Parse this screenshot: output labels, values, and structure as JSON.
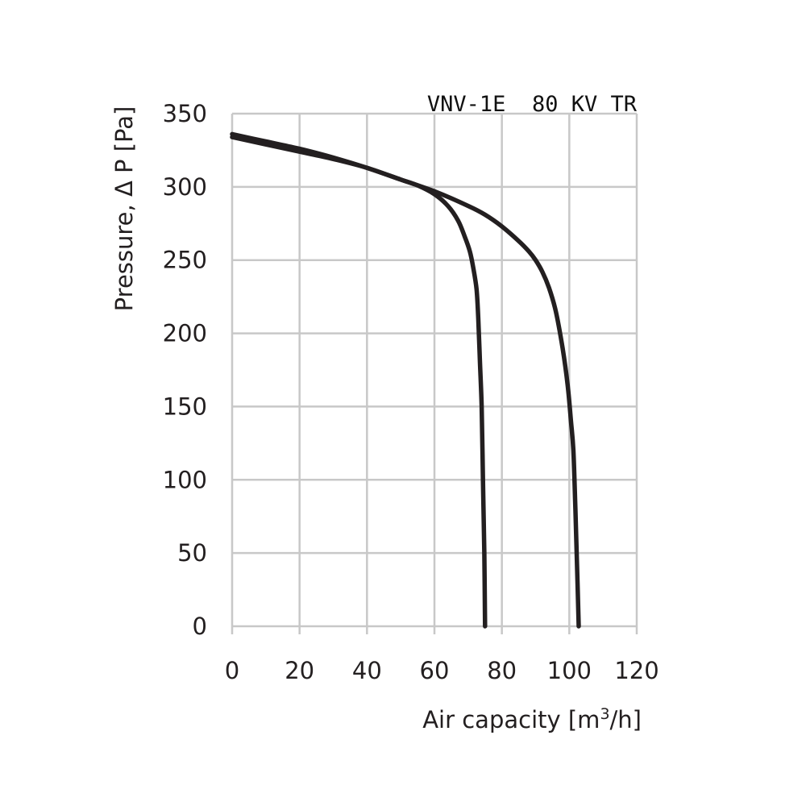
{
  "chart_data": {
    "type": "line",
    "title": "VNV-1E  80 KV TR",
    "xlabel": "Air capacity [m³/h]",
    "xlabel_parts": {
      "pre": "Air capacity [m",
      "sup": "3",
      "post": "/h]"
    },
    "ylabel": "Pressure, Δ P [Pa]",
    "xlim": [
      0,
      120
    ],
    "ylim": [
      0,
      350
    ],
    "xticks": [
      0,
      20,
      40,
      60,
      80,
      100,
      120
    ],
    "yticks": [
      0,
      50,
      100,
      150,
      200,
      250,
      300,
      350
    ],
    "grid": true,
    "line_color": "#231f20",
    "grid_color": "#c8c8c8",
    "series": [
      {
        "x": [
          0,
          10,
          20,
          30,
          40,
          50,
          55,
          60,
          64,
          67,
          69,
          70.5,
          71.5,
          72.5,
          73,
          73.5,
          74,
          74.4,
          74.8,
          75
        ],
        "y": [
          336,
          331,
          326,
          320,
          313,
          305,
          301,
          295,
          287,
          277,
          266,
          256,
          245,
          230,
          210,
          180,
          150,
          100,
          50,
          0
        ]
      },
      {
        "x": [
          0,
          10,
          20,
          30,
          40,
          50,
          60,
          70,
          75,
          80,
          85,
          88,
          90,
          92,
          94,
          96,
          98,
          99.5,
          100.5,
          101.2,
          101.8,
          102.3,
          102.8
        ],
        "y": [
          334,
          329,
          324,
          319,
          313,
          305,
          297,
          287,
          281,
          273,
          263,
          256,
          250,
          242,
          231,
          215,
          190,
          165,
          140,
          120,
          80,
          40,
          0
        ]
      }
    ]
  }
}
